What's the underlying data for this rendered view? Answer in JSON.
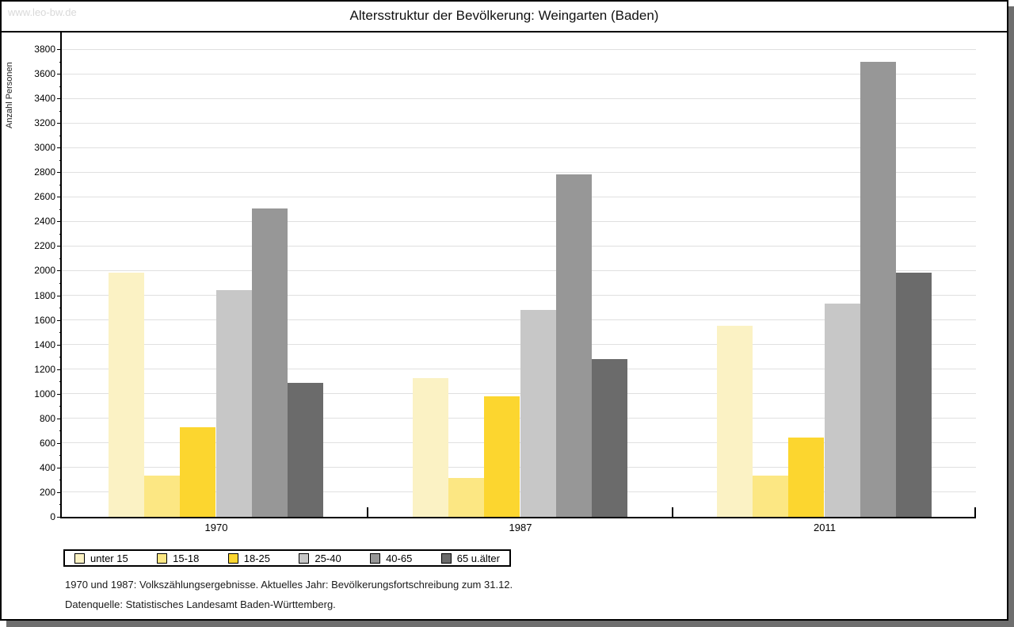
{
  "watermark": "www.leo-bw.de",
  "title": "Altersstruktur der Bevölkerung: Weingarten (Baden)",
  "footnotes": [
    "1970 und 1987: Volkszählungsergebnisse. Aktuelles Jahr: Bevölkerungsfortschreibung zum 31.12.",
    "Datenquelle: Statistisches Landesamt Baden-Württemberg."
  ],
  "chart_data": {
    "type": "bar",
    "title": "Altersstruktur der Bevölkerung: Weingarten (Baden)",
    "xlabel": "",
    "ylabel": "Anzahl Personen",
    "ylim": [
      0,
      3800
    ],
    "ytick_major_step": 200,
    "ytick_minor_step": 100,
    "grid": true,
    "legend_position": "bottom",
    "categories": [
      "1970",
      "1987",
      "2011"
    ],
    "series": [
      {
        "name": "unter 15",
        "color": "#fbf2c4",
        "values": [
          1985,
          1125,
          1550
        ]
      },
      {
        "name": "15-18",
        "color": "#fce783",
        "values": [
          335,
          315,
          335
        ]
      },
      {
        "name": "18-25",
        "color": "#fcd62f",
        "values": [
          725,
          980,
          645
        ]
      },
      {
        "name": "25-40",
        "color": "#c7c7c7",
        "values": [
          1845,
          1680,
          1730
        ]
      },
      {
        "name": "40-65",
        "color": "#979797",
        "values": [
          2505,
          2785,
          3700
        ]
      },
      {
        "name": "65 u.älter",
        "color": "#6b6b6b",
        "values": [
          1090,
          1280,
          1985
        ]
      }
    ]
  }
}
